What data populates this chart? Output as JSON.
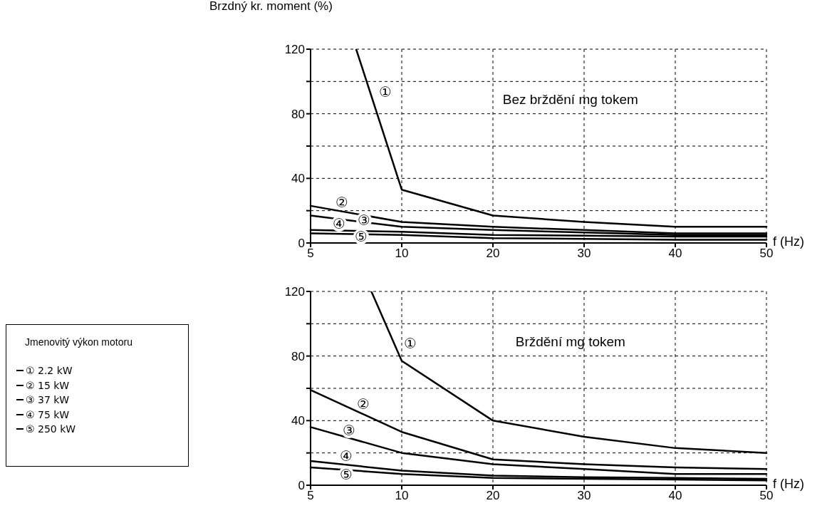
{
  "chart_data": [
    {
      "type": "line",
      "title": "Bez brždění mg tokem",
      "ylabel": "Brzdný kr. moment (%)",
      "xlabel": "f (Hz)",
      "categories": [
        "5",
        null,
        null,
        null,
        null,
        null,
        "10",
        null,
        null,
        null,
        null,
        null,
        "20",
        null,
        null,
        null,
        null,
        null,
        "30",
        null,
        null,
        null,
        null,
        null,
        "40",
        null,
        null,
        null,
        null,
        null,
        "50"
      ],
      "ylim": [
        0,
        120
      ],
      "yticks": [
        0,
        {
          "value": 20,
          "label": null
        },
        40,
        {
          "value": 60,
          "label": null
        },
        80,
        {
          "value": 100,
          "label": null
        },
        120
      ],
      "grid": true,
      "legend": false,
      "series": [
        {
          "color": "#000000",
          "values": [
            null,
            null,
            null,
            120,
            null,
            null,
            33,
            null,
            null,
            null,
            null,
            null,
            17,
            null,
            null,
            null,
            null,
            null,
            13,
            null,
            null,
            null,
            null,
            null,
            10,
            null,
            null,
            null,
            null,
            null,
            10
          ]
        },
        {
          "color": "#000000",
          "values": [
            23,
            null,
            null,
            null,
            null,
            null,
            13,
            null,
            null,
            null,
            null,
            null,
            10,
            null,
            null,
            null,
            null,
            null,
            8,
            null,
            null,
            null,
            null,
            null,
            6,
            null,
            null,
            null,
            null,
            null,
            6
          ]
        },
        {
          "color": "#000000",
          "values": [
            17,
            null,
            null,
            null,
            null,
            null,
            10,
            null,
            null,
            null,
            null,
            null,
            8,
            null,
            null,
            null,
            null,
            null,
            6.5,
            null,
            null,
            null,
            null,
            null,
            5,
            null,
            null,
            null,
            null,
            null,
            5
          ]
        },
        {
          "color": "#000000",
          "values": [
            8,
            null,
            null,
            null,
            null,
            null,
            7,
            null,
            null,
            null,
            null,
            null,
            5,
            null,
            null,
            null,
            null,
            null,
            4.5,
            null,
            null,
            null,
            null,
            null,
            4,
            null,
            null,
            null,
            null,
            null,
            4
          ]
        },
        {
          "color": "#000000",
          "values": [
            6,
            null,
            null,
            null,
            null,
            null,
            5,
            null,
            null,
            null,
            null,
            null,
            3,
            null,
            null,
            null,
            null,
            null,
            2.5,
            null,
            null,
            null,
            null,
            null,
            2,
            null,
            null,
            null,
            null,
            null,
            2
          ]
        }
      ],
      "annotations": [
        "①",
        "②",
        "③",
        "④",
        "⑤"
      ]
    },
    {
      "type": "line",
      "title": "Brždění mg tokem",
      "xlabel": "f (Hz)",
      "legend_title": "Jmenovitý výkon motoru",
      "categories": [
        "5",
        null,
        null,
        null,
        null,
        null,
        "10",
        null,
        null,
        null,
        null,
        null,
        "20",
        null,
        null,
        null,
        null,
        null,
        "30",
        null,
        null,
        null,
        null,
        null,
        "40",
        null,
        null,
        null,
        null,
        null,
        "50"
      ],
      "ylim": [
        0,
        120
      ],
      "yticks": [
        0,
        {
          "value": 20,
          "label": null
        },
        40,
        {
          "value": 60,
          "label": null
        },
        80,
        {
          "value": 100,
          "label": null
        },
        120
      ],
      "grid": true,
      "legend": "left",
      "series": [
        {
          "name": "① 2.2 kW",
          "color": "#000000",
          "values": [
            null,
            null,
            null,
            null,
            120,
            null,
            77,
            null,
            null,
            null,
            null,
            null,
            40,
            null,
            null,
            null,
            null,
            null,
            30,
            null,
            null,
            null,
            null,
            null,
            23,
            null,
            null,
            null,
            null,
            null,
            20
          ]
        },
        {
          "name": "② 15 kW",
          "color": "#000000",
          "values": [
            59,
            null,
            null,
            null,
            null,
            null,
            33,
            null,
            null,
            null,
            null,
            null,
            16,
            null,
            null,
            null,
            null,
            null,
            13,
            null,
            null,
            null,
            null,
            null,
            11,
            null,
            null,
            null,
            null,
            null,
            10
          ]
        },
        {
          "name": "③ 37 kW",
          "color": "#000000",
          "values": [
            36,
            null,
            null,
            null,
            null,
            null,
            20,
            null,
            null,
            null,
            null,
            null,
            13,
            null,
            null,
            null,
            null,
            null,
            10,
            null,
            null,
            null,
            null,
            null,
            7,
            null,
            null,
            null,
            null,
            null,
            7
          ]
        },
        {
          "name": "④ 75 kW",
          "color": "#000000",
          "values": [
            15,
            null,
            null,
            null,
            null,
            null,
            9,
            null,
            null,
            null,
            null,
            null,
            6,
            null,
            null,
            null,
            null,
            null,
            5,
            null,
            null,
            null,
            null,
            null,
            4.5,
            null,
            null,
            null,
            null,
            null,
            4
          ]
        },
        {
          "name": "⑤ 250 kW",
          "color": "#000000",
          "values": [
            11,
            null,
            null,
            null,
            null,
            null,
            7,
            null,
            null,
            null,
            null,
            null,
            4.5,
            null,
            null,
            null,
            null,
            null,
            4,
            null,
            null,
            null,
            null,
            null,
            3.5,
            null,
            null,
            null,
            null,
            null,
            3
          ]
        }
      ],
      "annotations": [
        "①",
        "②",
        "③",
        "④",
        "⑤"
      ]
    }
  ]
}
